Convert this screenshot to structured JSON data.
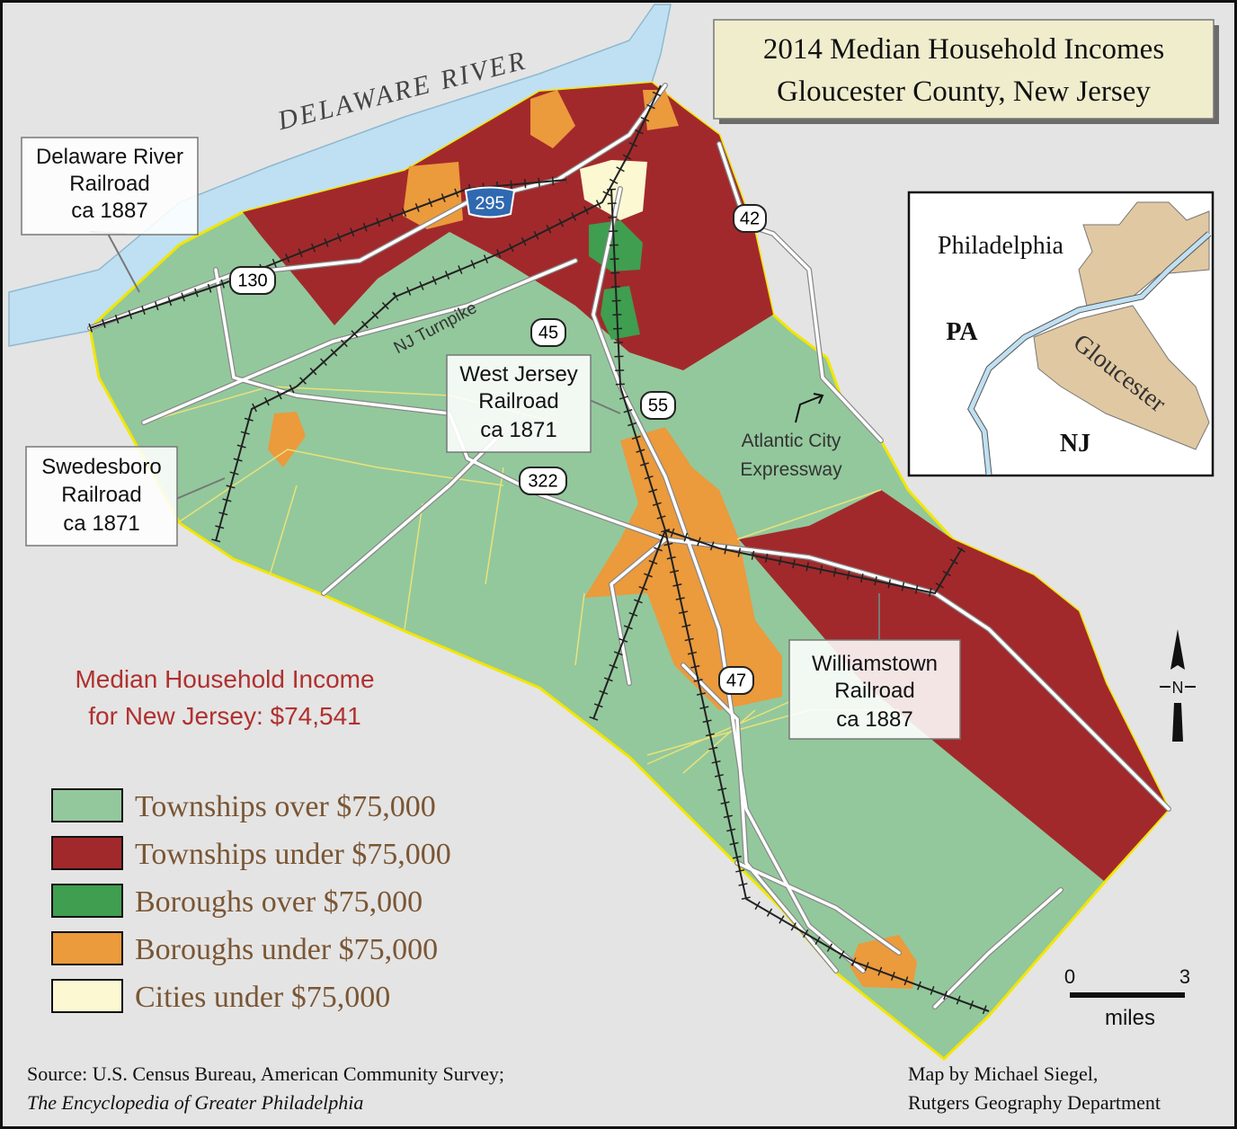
{
  "title": [
    "2014 Median Household Incomes",
    "Gloucester County, New Jersey"
  ],
  "river_label": "DELAWARE RIVER",
  "railroads": [
    {
      "lines": [
        "Delaware River",
        "Railroad",
        "ca 1887"
      ]
    },
    {
      "lines": [
        "Swedesboro",
        "Railroad",
        "ca 1871"
      ]
    },
    {
      "lines": [
        "West Jersey",
        "Railroad",
        "ca 1871"
      ]
    },
    {
      "lines": [
        "Williamstown",
        "Railroad",
        "ca 1887"
      ]
    }
  ],
  "routes": [
    "295",
    "130",
    "42",
    "45",
    "55",
    "322",
    "47"
  ],
  "road_labels": {
    "turnpike": "NJ Turnpike",
    "expressway": [
      "Atlantic City",
      "Expressway"
    ]
  },
  "state_note": [
    "Median Household Income",
    "for New Jersey: $74,541"
  ],
  "legend": [
    {
      "label": "Townships over $75,000",
      "color": "#93c89c"
    },
    {
      "label": "Townships under $75,000",
      "color": "#a2292b"
    },
    {
      "label": "Boroughs over $75,000",
      "color": "#3f9e4f"
    },
    {
      "label": "Boroughs under $75,000",
      "color": "#eb9a3c"
    },
    {
      "label": "Cities under $75,000",
      "color": "#fbf8d2"
    }
  ],
  "inset": {
    "philadelphia": "Philadelphia",
    "pa": "PA",
    "gloucester": "Gloucester",
    "nj": "NJ"
  },
  "scale": {
    "ticks": [
      0,
      3
    ],
    "unit": "miles"
  },
  "north": "N",
  "source": [
    "Source: U.S. Census Bureau, American Community Survey;",
    "The Encyclopedia of Greater Philadelphia"
  ],
  "credit": [
    "Map by Michael Siegel,",
    "Rutgers Geography Department"
  ]
}
